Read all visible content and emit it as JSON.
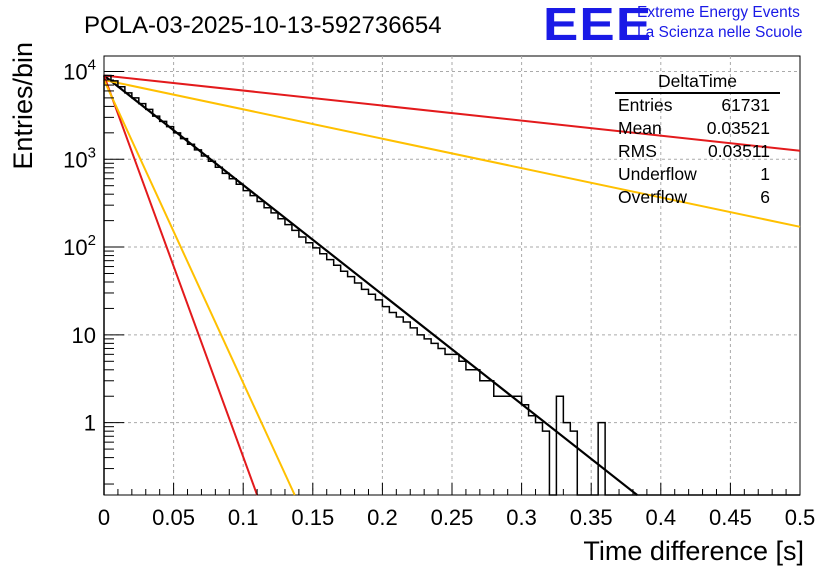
{
  "chart_data": {
    "type": "histogram",
    "title": "POLA-03-2025-10-13-592736654",
    "xlabel": "Time difference [s]",
    "ylabel": "Entries/bin",
    "xlim": [
      0,
      0.5
    ],
    "ylim": [
      0.15,
      15000
    ],
    "yscale": "log",
    "grid": true,
    "x_ticks": [
      "0",
      "0.05",
      "0.1",
      "0.15",
      "0.2",
      "0.25",
      "0.3",
      "0.35",
      "0.4",
      "0.45",
      "0.5"
    ],
    "y_ticks": [
      {
        "value": 1,
        "base": "1",
        "exp": ""
      },
      {
        "value": 10,
        "base": "10",
        "exp": ""
      },
      {
        "value": 100,
        "base": "10",
        "exp": "2"
      },
      {
        "value": 1000,
        "base": "10",
        "exp": "3"
      },
      {
        "value": 10000,
        "base": "10",
        "exp": "4"
      }
    ],
    "bin_width": 0.005,
    "histogram_counts": [
      9000,
      7800,
      6700,
      5700,
      5000,
      4300,
      3700,
      3100,
      2700,
      2350,
      2000,
      1720,
      1480,
      1280,
      1090,
      950,
      810,
      690,
      600,
      520,
      440,
      385,
      330,
      280,
      245,
      210,
      180,
      155,
      130,
      112,
      98,
      84,
      72,
      62,
      53,
      46,
      39,
      33,
      29,
      25,
      21,
      18,
      16,
      14,
      12,
      10,
      9,
      8,
      7,
      6,
      6,
      5,
      4,
      4,
      3,
      3,
      2,
      2,
      2,
      2,
      1.6,
      1.2,
      1,
      0.8,
      0,
      2,
      1,
      0.8,
      0,
      0,
      0,
      1,
      0,
      0,
      0,
      0,
      0,
      0,
      0,
      0,
      0,
      0,
      0,
      0,
      0,
      0,
      0,
      0,
      0,
      0,
      0,
      0,
      0,
      0,
      0,
      0,
      0,
      0,
      0,
      0
    ],
    "series": [
      {
        "name": "data-fit",
        "color": "#000000",
        "points": [
          [
            0,
            9000
          ],
          [
            0.383,
            0.15
          ]
        ]
      },
      {
        "name": "slow-red",
        "color": "#e31a1c",
        "points": [
          [
            0,
            9000
          ],
          [
            0.5,
            1250
          ]
        ]
      },
      {
        "name": "slow-yellow",
        "color": "#ffc000",
        "points": [
          [
            0,
            8000
          ],
          [
            0.5,
            170
          ]
        ]
      },
      {
        "name": "fast-red",
        "color": "#e31a1c",
        "points": [
          [
            0,
            9000
          ],
          [
            0.11,
            0.15
          ]
        ]
      },
      {
        "name": "fast-yellow",
        "color": "#ffc000",
        "points": [
          [
            0,
            8000
          ],
          [
            0.137,
            0.15
          ]
        ]
      }
    ]
  },
  "stats": {
    "title": "DeltaTime",
    "rows": [
      {
        "label": "Entries",
        "value": "61731"
      },
      {
        "label": "Mean",
        "value": "0.03521"
      },
      {
        "label": "RMS",
        "value": "0.03511"
      },
      {
        "label": "Underflow",
        "value": "1"
      },
      {
        "label": "Overflow",
        "value": "6"
      }
    ]
  },
  "logo": {
    "text": "EEE",
    "line1": "Extreme Energy Events",
    "line2": "La Scienza nelle Scuole",
    "color": "#1a1ae6"
  }
}
